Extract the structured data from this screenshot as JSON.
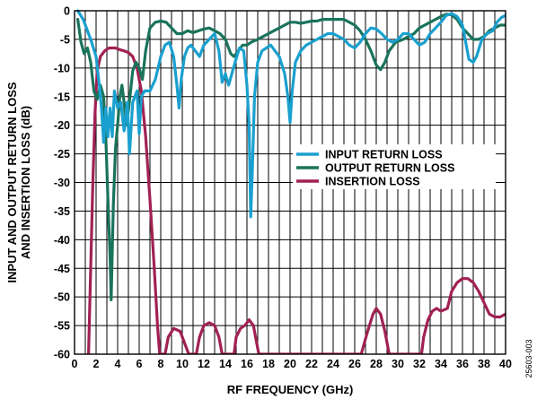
{
  "chart_data": {
    "type": "line",
    "xlabel": "RF FREQUENCY (GHz)",
    "ylabel_lines": [
      "INPUT AND OUTPUT RETURN LOSS",
      "AND INSERTION LOSS (dB)"
    ],
    "xlim": [
      0,
      40
    ],
    "ylim": [
      -60,
      0
    ],
    "x_ticks": [
      0,
      2,
      4,
      6,
      8,
      10,
      12,
      14,
      16,
      18,
      20,
      22,
      24,
      26,
      28,
      30,
      32,
      34,
      36,
      38,
      40
    ],
    "y_ticks": [
      0,
      -5,
      -10,
      -15,
      -20,
      -25,
      -30,
      -35,
      -40,
      -45,
      -50,
      -55,
      -60
    ],
    "x_minor_step": 1,
    "grid": true,
    "legend_position": "center-right",
    "figure_id": "25603-003",
    "series": [
      {
        "name": "INPUT RETURN LOSS",
        "color": "#1aa0cf",
        "points": [
          [
            0.3,
            0
          ],
          [
            0.8,
            -1.5
          ],
          [
            1.5,
            -5
          ],
          [
            2,
            -8
          ],
          [
            2.3,
            -13
          ],
          [
            2.5,
            -17
          ],
          [
            2.7,
            -23
          ],
          [
            2.9,
            -17
          ],
          [
            3.1,
            -22
          ],
          [
            3.3,
            -17
          ],
          [
            3.5,
            -22
          ],
          [
            3.7,
            -14
          ],
          [
            4,
            -17
          ],
          [
            4.3,
            -16
          ],
          [
            4.6,
            -21
          ],
          [
            4.9,
            -16
          ],
          [
            5.1,
            -25
          ],
          [
            5.4,
            -16
          ],
          [
            5.8,
            -14
          ],
          [
            6,
            -21.5
          ],
          [
            6.2,
            -15
          ],
          [
            6.5,
            -14
          ],
          [
            7,
            -14
          ],
          [
            7.5,
            -12
          ],
          [
            8,
            -8
          ],
          [
            8.4,
            -6
          ],
          [
            8.8,
            -5.5
          ],
          [
            9.2,
            -8
          ],
          [
            9.5,
            -13
          ],
          [
            9.7,
            -17
          ],
          [
            9.9,
            -12
          ],
          [
            10.2,
            -8
          ],
          [
            10.5,
            -6.5
          ],
          [
            10.8,
            -6
          ],
          [
            11.2,
            -7
          ],
          [
            11.6,
            -8
          ],
          [
            12,
            -6
          ],
          [
            12.5,
            -5
          ],
          [
            13,
            -4
          ],
          [
            13.4,
            -7
          ],
          [
            13.7,
            -12.5
          ],
          [
            14,
            -11
          ],
          [
            14.3,
            -13
          ],
          [
            14.6,
            -11
          ],
          [
            14.9,
            -9
          ],
          [
            15.3,
            -6.5
          ],
          [
            15.7,
            -7
          ],
          [
            16,
            -13
          ],
          [
            16.2,
            -20
          ],
          [
            16.35,
            -36
          ],
          [
            16.5,
            -28
          ],
          [
            16.7,
            -15
          ],
          [
            17,
            -9
          ],
          [
            17.4,
            -7
          ],
          [
            17.8,
            -6.5
          ],
          [
            18.2,
            -6
          ],
          [
            18.6,
            -7
          ],
          [
            19,
            -8
          ],
          [
            19.5,
            -11
          ],
          [
            19.8,
            -15
          ],
          [
            20,
            -19.5
          ],
          [
            20.2,
            -14
          ],
          [
            20.5,
            -9
          ],
          [
            21,
            -7
          ],
          [
            21.5,
            -6
          ],
          [
            22,
            -5.5
          ],
          [
            22.5,
            -5
          ],
          [
            23,
            -4.5
          ],
          [
            23.5,
            -4
          ],
          [
            24,
            -4
          ],
          [
            24.5,
            -4.5
          ],
          [
            25,
            -5
          ],
          [
            25.5,
            -6
          ],
          [
            26,
            -6.5
          ],
          [
            26.5,
            -5.5
          ],
          [
            27,
            -4
          ],
          [
            27.5,
            -3
          ],
          [
            28,
            -3.2
          ],
          [
            28.5,
            -4
          ],
          [
            29,
            -5
          ],
          [
            29.5,
            -5.5
          ],
          [
            30,
            -5
          ],
          [
            30.5,
            -4
          ],
          [
            31,
            -4
          ],
          [
            31.5,
            -5
          ],
          [
            32,
            -6
          ],
          [
            32.5,
            -5.5
          ],
          [
            33,
            -4
          ],
          [
            33.5,
            -3
          ],
          [
            34,
            -2
          ],
          [
            34.5,
            -0.8
          ],
          [
            35,
            -0.5
          ],
          [
            35.5,
            -1
          ],
          [
            36,
            -2.5
          ],
          [
            36.3,
            -5.5
          ],
          [
            36.6,
            -8.5
          ],
          [
            37,
            -9
          ],
          [
            37.3,
            -8
          ],
          [
            37.8,
            -5
          ],
          [
            38.3,
            -4
          ],
          [
            38.8,
            -3.5
          ],
          [
            39.2,
            -2
          ],
          [
            39.6,
            -1.2
          ],
          [
            40,
            -0.8
          ]
        ]
      },
      {
        "name": "OUTPUT RETURN LOSS",
        "color": "#19735a",
        "points": [
          [
            0.3,
            -1.5
          ],
          [
            0.6,
            -5.5
          ],
          [
            0.9,
            -7.5
          ],
          [
            1.2,
            -6.5
          ],
          [
            1.5,
            -9
          ],
          [
            1.8,
            -14
          ],
          [
            2.1,
            -15.5
          ],
          [
            2.4,
            -13
          ],
          [
            2.7,
            -15
          ],
          [
            2.9,
            -22
          ],
          [
            3.1,
            -33
          ],
          [
            3.3,
            -43
          ],
          [
            3.4,
            -50.5
          ],
          [
            3.6,
            -34
          ],
          [
            3.8,
            -24
          ],
          [
            4,
            -20
          ],
          [
            4.2,
            -15
          ],
          [
            4.4,
            -13
          ],
          [
            4.6,
            -16
          ],
          [
            4.8,
            -20
          ],
          [
            5,
            -17.5
          ],
          [
            5.2,
            -14
          ],
          [
            5.4,
            -10.5
          ],
          [
            5.7,
            -9
          ],
          [
            6,
            -10
          ],
          [
            6.3,
            -12
          ],
          [
            6.6,
            -7
          ],
          [
            7,
            -3
          ],
          [
            7.5,
            -2
          ],
          [
            8,
            -1.8
          ],
          [
            8.5,
            -2
          ],
          [
            9,
            -3
          ],
          [
            9.5,
            -4
          ],
          [
            10,
            -4
          ],
          [
            10.5,
            -3.5
          ],
          [
            11,
            -3.8
          ],
          [
            11.5,
            -3.5
          ],
          [
            12,
            -3.2
          ],
          [
            12.5,
            -3
          ],
          [
            13,
            -3.5
          ],
          [
            13.5,
            -4
          ],
          [
            14,
            -5
          ],
          [
            14.5,
            -7.5
          ],
          [
            14.8,
            -8
          ],
          [
            15.2,
            -7
          ],
          [
            15.6,
            -6
          ],
          [
            16,
            -6
          ],
          [
            16.4,
            -5.5
          ],
          [
            17,
            -5
          ],
          [
            17.5,
            -4.5
          ],
          [
            18,
            -4
          ],
          [
            18.5,
            -3.5
          ],
          [
            19,
            -3
          ],
          [
            19.5,
            -2.5
          ],
          [
            20,
            -2
          ],
          [
            20.5,
            -2
          ],
          [
            21,
            -2.2
          ],
          [
            21.5,
            -2
          ],
          [
            22,
            -1.8
          ],
          [
            22.5,
            -1.8
          ],
          [
            23,
            -1.5
          ],
          [
            23.5,
            -1.5
          ],
          [
            24,
            -1.5
          ],
          [
            24.5,
            -1.5
          ],
          [
            25,
            -1.5
          ],
          [
            25.5,
            -2
          ],
          [
            26,
            -2.5
          ],
          [
            26.5,
            -3.5
          ],
          [
            27,
            -5
          ],
          [
            27.5,
            -7
          ],
          [
            28,
            -9.5
          ],
          [
            28.4,
            -10.3
          ],
          [
            28.8,
            -9
          ],
          [
            29.2,
            -7
          ],
          [
            29.8,
            -5.5
          ],
          [
            30.5,
            -5
          ],
          [
            31,
            -4.5
          ],
          [
            31.5,
            -4
          ],
          [
            32,
            -3
          ],
          [
            32.5,
            -2.5
          ],
          [
            33,
            -2
          ],
          [
            33.5,
            -1.5
          ],
          [
            34,
            -1
          ],
          [
            34.5,
            -0.6
          ],
          [
            35,
            -0.7
          ],
          [
            35.5,
            -1.5
          ],
          [
            36,
            -3
          ],
          [
            36.5,
            -4
          ],
          [
            37,
            -5
          ],
          [
            37.5,
            -5
          ],
          [
            38,
            -4.5
          ],
          [
            38.5,
            -3.5
          ],
          [
            39,
            -3
          ],
          [
            39.5,
            -2.5
          ],
          [
            40,
            -2.5
          ]
        ]
      },
      {
        "name": "INSERTION LOSS",
        "color": "#a12152",
        "points": [
          [
            1.3,
            -60
          ],
          [
            1.5,
            -45
          ],
          [
            1.7,
            -30
          ],
          [
            1.9,
            -18
          ],
          [
            2.1,
            -10.5
          ],
          [
            2.4,
            -8
          ],
          [
            2.8,
            -7
          ],
          [
            3.2,
            -6.5
          ],
          [
            3.8,
            -6.5
          ],
          [
            4.2,
            -6.8
          ],
          [
            4.6,
            -7
          ],
          [
            5,
            -7.3
          ],
          [
            5.4,
            -8
          ],
          [
            5.8,
            -10
          ],
          [
            6.2,
            -14
          ],
          [
            6.6,
            -22
          ],
          [
            7,
            -33
          ],
          [
            7.4,
            -45
          ],
          [
            7.7,
            -55
          ],
          [
            7.9,
            -60
          ],
          [
            8.4,
            -60
          ],
          [
            8.7,
            -57
          ],
          [
            9.2,
            -55.5
          ],
          [
            9.8,
            -56
          ],
          [
            10.2,
            -58
          ],
          [
            10.6,
            -60
          ],
          [
            11.3,
            -60
          ],
          [
            11.6,
            -57
          ],
          [
            12,
            -55
          ],
          [
            12.5,
            -54.5
          ],
          [
            13,
            -55
          ],
          [
            13.4,
            -57
          ],
          [
            13.7,
            -60
          ],
          [
            14.8,
            -60
          ],
          [
            15,
            -57
          ],
          [
            15.4,
            -55.5
          ],
          [
            15.8,
            -55
          ],
          [
            16.2,
            -54
          ],
          [
            16.6,
            -55
          ],
          [
            16.9,
            -58
          ],
          [
            17.1,
            -60
          ],
          [
            26.6,
            -60
          ],
          [
            27.2,
            -56
          ],
          [
            27.7,
            -53
          ],
          [
            28,
            -52
          ],
          [
            28.4,
            -53
          ],
          [
            28.8,
            -56
          ],
          [
            29.2,
            -60
          ],
          [
            32.2,
            -60
          ],
          [
            32.4,
            -57
          ],
          [
            32.8,
            -54
          ],
          [
            33.2,
            -52.5
          ],
          [
            33.6,
            -52
          ],
          [
            34,
            -52.5
          ],
          [
            34.6,
            -52
          ],
          [
            35,
            -49
          ],
          [
            35.5,
            -47.5
          ],
          [
            36,
            -46.8
          ],
          [
            36.5,
            -46.8
          ],
          [
            37,
            -47.5
          ],
          [
            37.5,
            -49
          ],
          [
            38,
            -51
          ],
          [
            38.5,
            -53
          ],
          [
            39,
            -53.5
          ],
          [
            39.5,
            -53.5
          ],
          [
            40,
            -53
          ]
        ]
      }
    ]
  }
}
